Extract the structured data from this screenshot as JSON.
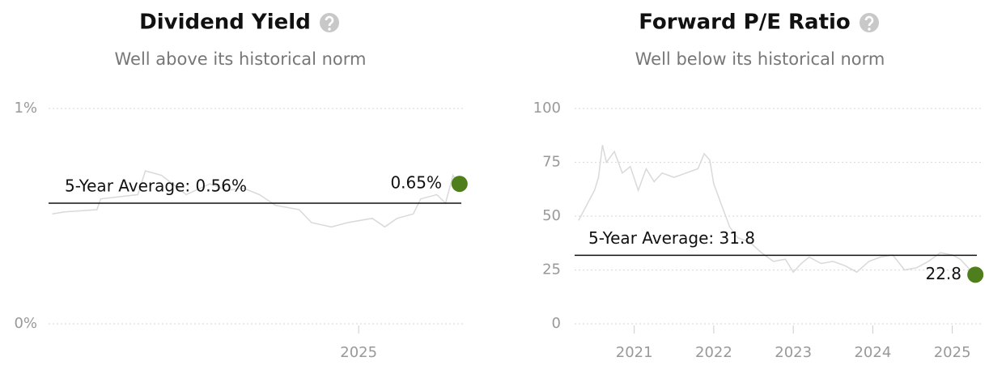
{
  "chart_data": [
    {
      "type": "line",
      "title": "Dividend Yield",
      "subtitle": "Well above its historical norm",
      "x": [
        2022.53,
        2022.63,
        2022.89,
        2022.92,
        2023.22,
        2023.28,
        2023.41,
        2023.61,
        2023.8,
        2023.94,
        2024.07,
        2024.2,
        2024.33,
        2024.52,
        2024.62,
        2024.78,
        2024.91,
        2025.11,
        2025.21,
        2025.31,
        2025.44,
        2025.5,
        2025.63,
        2025.7,
        2025.76,
        2025.8
      ],
      "values": [
        0.51,
        0.52,
        0.53,
        0.58,
        0.6,
        0.71,
        0.69,
        0.6,
        0.65,
        0.62,
        0.63,
        0.6,
        0.55,
        0.53,
        0.47,
        0.45,
        0.47,
        0.49,
        0.45,
        0.49,
        0.51,
        0.58,
        0.6,
        0.56,
        0.69,
        0.65
      ],
      "color": "#d9d9d9",
      "marker_color": "#4f7f1d",
      "grid": true,
      "xlim": [
        2022.5,
        2025.86
      ],
      "xticks": [
        2025
      ],
      "ylim": [
        0,
        1
      ],
      "yticks": [
        {
          "value": 0,
          "label": "0%"
        },
        {
          "value": 1,
          "label": "1%"
        }
      ],
      "average": {
        "value": 0.56,
        "label": "5-Year Average: 0.56%"
      },
      "current": {
        "value": 0.65,
        "label": "0.65%"
      }
    },
    {
      "type": "line",
      "title": "Forward P/E Ratio",
      "subtitle": "Well below its historical norm",
      "x": [
        2020.3,
        2020.4,
        2020.5,
        2020.55,
        2020.6,
        2020.65,
        2020.75,
        2020.85,
        2020.95,
        2021.05,
        2021.15,
        2021.25,
        2021.35,
        2021.5,
        2021.65,
        2021.8,
        2021.88,
        2021.95,
        2022.0,
        2022.1,
        2022.2,
        2022.3,
        2022.45,
        2022.6,
        2022.75,
        2022.9,
        2023.0,
        2023.1,
        2023.2,
        2023.35,
        2023.5,
        2023.65,
        2023.8,
        2023.95,
        2024.1,
        2024.25,
        2024.4,
        2024.55,
        2024.7,
        2024.85,
        2025.0,
        2025.1,
        2025.2,
        2025.27
      ],
      "values": [
        48,
        55,
        62,
        68,
        83,
        75,
        80,
        70,
        73,
        62,
        72,
        66,
        70,
        68,
        70,
        72,
        79,
        76,
        65,
        55,
        45,
        40,
        38,
        33,
        29,
        30,
        24,
        28,
        31,
        28,
        29,
        27,
        24,
        29,
        31,
        32,
        25,
        26,
        29,
        33,
        32,
        30,
        26,
        22.8
      ],
      "color": "#d9d9d9",
      "marker_color": "#4f7f1d",
      "grid": true,
      "xlim": [
        2020.25,
        2025.36
      ],
      "xticks": [
        2021,
        2022,
        2023,
        2024,
        2025
      ],
      "ylim": [
        0,
        100
      ],
      "yticks": [
        0,
        25,
        50,
        75,
        100
      ],
      "average": {
        "value": 31.8,
        "label": "5-Year Average: 31.8"
      },
      "current": {
        "value": 22.8,
        "label": "22.8"
      }
    }
  ]
}
